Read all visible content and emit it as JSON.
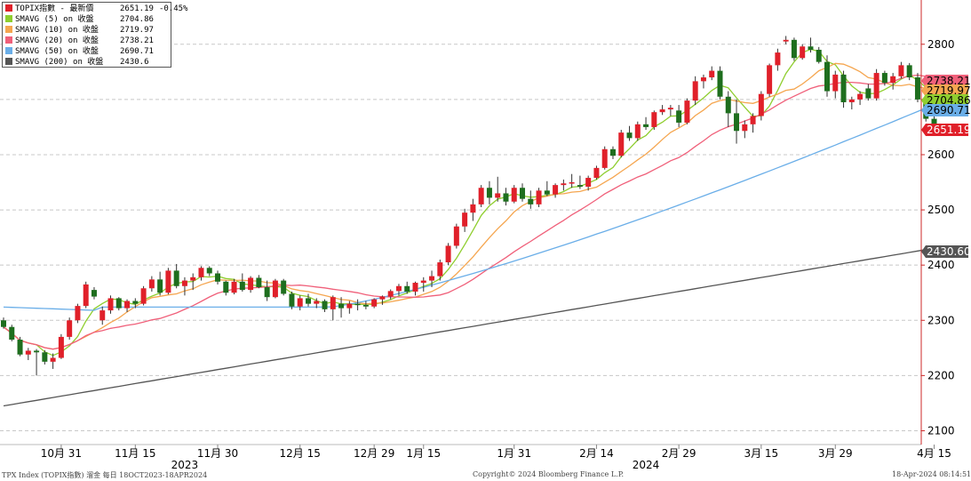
{
  "chart_data": {
    "type": "candlestick",
    "series": [
      {
        "name": "TOPIX指數 - 最新價",
        "last": 2651.19,
        "change": "-0.45%",
        "color": "#e0202a"
      },
      {
        "name": "SMAVG (5)  on 收盤",
        "last": 2704.86,
        "color": "#8fce2f"
      },
      {
        "name": "SMAVG (10)  on 收盤",
        "last": 2719.97,
        "color": "#f5a650"
      },
      {
        "name": "SMAVG (20)  on 收盤",
        "last": 2738.21,
        "color": "#f0607a"
      },
      {
        "name": "SMAVG (50)  on 收盤",
        "last": 2690.71,
        "color": "#6aaee8"
      },
      {
        "name": "SMAVG (200)  on 收盤",
        "last": 2430.6,
        "color": "#555555"
      }
    ],
    "y_axis": {
      "ticks": [
        2100,
        2200,
        2300,
        2400,
        2500,
        2600,
        2700,
        2800
      ],
      "range": [
        2075,
        2905
      ],
      "side": "right"
    },
    "x_axis": {
      "ticks": [
        "10月 31",
        "11月 15",
        "11月 30",
        "12月 15",
        "12月 29",
        "1月 15",
        "1月 31",
        "2月 14",
        "2月 29",
        "3月 15",
        "3月 29",
        "4月 15"
      ],
      "years": [
        "2023",
        "2024"
      ]
    },
    "tags": [
      "2738.21",
      "2719.97",
      "2704.86",
      "2690.71",
      "2651.19",
      "2430.60"
    ],
    "grid": "horizontal dashed",
    "up_color": "#e0202a",
    "down_color": "#1e6e1e",
    "candles": [
      [
        2300,
        2305,
        2285,
        2288
      ],
      [
        2288,
        2292,
        2262,
        2265
      ],
      [
        2265,
        2270,
        2235,
        2238
      ],
      [
        2238,
        2250,
        2228,
        2245
      ],
      [
        2245,
        2248,
        2200,
        2242
      ],
      [
        2242,
        2246,
        2220,
        2225
      ],
      [
        2225,
        2240,
        2212,
        2232
      ],
      [
        2232,
        2275,
        2230,
        2270
      ],
      [
        2270,
        2305,
        2265,
        2300
      ],
      [
        2300,
        2330,
        2295,
        2326
      ],
      [
        2326,
        2370,
        2322,
        2365
      ],
      [
        2355,
        2360,
        2338,
        2343
      ],
      [
        2300,
        2325,
        2292,
        2318
      ],
      [
        2318,
        2345,
        2312,
        2340
      ],
      [
        2340,
        2342,
        2318,
        2322
      ],
      [
        2322,
        2338,
        2315,
        2335
      ],
      [
        2335,
        2340,
        2322,
        2330
      ],
      [
        2330,
        2362,
        2327,
        2358
      ],
      [
        2358,
        2380,
        2352,
        2374
      ],
      [
        2374,
        2388,
        2345,
        2350
      ],
      [
        2350,
        2395,
        2347,
        2390
      ],
      [
        2390,
        2402,
        2358,
        2362
      ],
      [
        2362,
        2378,
        2345,
        2372
      ],
      [
        2372,
        2385,
        2355,
        2378
      ],
      [
        2378,
        2398,
        2372,
        2395
      ],
      [
        2395,
        2398,
        2380,
        2385
      ],
      [
        2385,
        2390,
        2365,
        2370
      ],
      [
        2370,
        2372,
        2345,
        2350
      ],
      [
        2350,
        2375,
        2347,
        2370
      ],
      [
        2370,
        2385,
        2352,
        2355
      ],
      [
        2355,
        2380,
        2350,
        2377
      ],
      [
        2377,
        2382,
        2358,
        2360
      ],
      [
        2360,
        2372,
        2335,
        2342
      ],
      [
        2342,
        2375,
        2340,
        2372
      ],
      [
        2372,
        2375,
        2345,
        2348
      ],
      [
        2348,
        2352,
        2320,
        2325
      ],
      [
        2325,
        2345,
        2318,
        2340
      ],
      [
        2340,
        2348,
        2325,
        2330
      ],
      [
        2330,
        2340,
        2322,
        2335
      ],
      [
        2335,
        2338,
        2315,
        2320
      ],
      [
        2320,
        2345,
        2300,
        2342
      ],
      [
        2330,
        2342,
        2305,
        2322
      ],
      [
        2322,
        2335,
        2312,
        2330
      ],
      [
        2330,
        2338,
        2318,
        2328
      ],
      [
        2328,
        2335,
        2320,
        2325
      ],
      [
        2325,
        2340,
        2322,
        2338
      ],
      [
        2338,
        2345,
        2328,
        2343
      ],
      [
        2343,
        2356,
        2338,
        2353
      ],
      [
        2353,
        2366,
        2345,
        2362
      ],
      [
        2362,
        2370,
        2348,
        2352
      ],
      [
        2352,
        2370,
        2345,
        2368
      ],
      [
        2368,
        2378,
        2352,
        2372
      ],
      [
        2372,
        2390,
        2360,
        2380
      ],
      [
        2380,
        2410,
        2372,
        2405
      ],
      [
        2405,
        2440,
        2400,
        2435
      ],
      [
        2435,
        2475,
        2430,
        2470
      ],
      [
        2470,
        2502,
        2460,
        2495
      ],
      [
        2495,
        2520,
        2480,
        2510
      ],
      [
        2510,
        2545,
        2505,
        2540
      ],
      [
        2540,
        2552,
        2510,
        2522
      ],
      [
        2522,
        2560,
        2515,
        2530
      ],
      [
        2530,
        2540,
        2508,
        2515
      ],
      [
        2515,
        2545,
        2512,
        2540
      ],
      [
        2540,
        2548,
        2515,
        2520
      ],
      [
        2520,
        2535,
        2502,
        2510
      ],
      [
        2510,
        2540,
        2505,
        2535
      ],
      [
        2535,
        2552,
        2525,
        2528
      ],
      [
        2528,
        2548,
        2522,
        2545
      ],
      [
        2545,
        2555,
        2535,
        2548
      ],
      [
        2548,
        2565,
        2540,
        2550
      ],
      [
        2545,
        2562,
        2538,
        2542
      ],
      [
        2542,
        2562,
        2535,
        2558
      ],
      [
        2558,
        2580,
        2555,
        2576
      ],
      [
        2576,
        2615,
        2573,
        2610
      ],
      [
        2610,
        2615,
        2592,
        2598
      ],
      [
        2598,
        2645,
        2595,
        2640
      ],
      [
        2640,
        2652,
        2625,
        2630
      ],
      [
        2630,
        2660,
        2625,
        2655
      ],
      [
        2655,
        2668,
        2645,
        2650
      ],
      [
        2650,
        2680,
        2645,
        2677
      ],
      [
        2677,
        2690,
        2672,
        2682
      ],
      [
        2682,
        2690,
        2670,
        2685
      ],
      [
        2680,
        2690,
        2650,
        2658
      ],
      [
        2658,
        2702,
        2655,
        2698
      ],
      [
        2698,
        2742,
        2690,
        2733
      ],
      [
        2733,
        2745,
        2720,
        2740
      ],
      [
        2740,
        2760,
        2735,
        2752
      ],
      [
        2752,
        2760,
        2700,
        2705
      ],
      [
        2705,
        2715,
        2650,
        2675
      ],
      [
        2675,
        2700,
        2620,
        2643
      ],
      [
        2643,
        2662,
        2630,
        2655
      ],
      [
        2655,
        2675,
        2640,
        2670
      ],
      [
        2670,
        2715,
        2662,
        2710
      ],
      [
        2710,
        2765,
        2705,
        2762
      ],
      [
        2762,
        2792,
        2752,
        2785
      ],
      [
        2805,
        2815,
        2800,
        2808
      ],
      [
        2808,
        2812,
        2770,
        2775
      ],
      [
        2775,
        2800,
        2772,
        2796
      ],
      [
        2796,
        2812,
        2785,
        2790
      ],
      [
        2790,
        2795,
        2765,
        2768
      ],
      [
        2768,
        2780,
        2705,
        2715
      ],
      [
        2715,
        2752,
        2702,
        2745
      ],
      [
        2745,
        2752,
        2685,
        2695
      ],
      [
        2695,
        2705,
        2682,
        2700
      ],
      [
        2700,
        2715,
        2690,
        2710
      ],
      [
        2720,
        2728,
        2698,
        2702
      ],
      [
        2702,
        2755,
        2698,
        2748
      ],
      [
        2748,
        2752,
        2725,
        2730
      ],
      [
        2730,
        2748,
        2718,
        2742
      ],
      [
        2742,
        2768,
        2738,
        2762
      ],
      [
        2762,
        2766,
        2735,
        2740
      ],
      [
        2740,
        2748,
        2695,
        2700
      ],
      [
        2700,
        2706,
        2660,
        2665
      ],
      [
        2665,
        2670,
        2651,
        2651
      ]
    ]
  },
  "footer": {
    "left": "TPX Index (TOPIX指數) 溜金  每日 18OCT2023-18APR2024",
    "center": "Copyright© 2024 Bloomberg Finance L.P.",
    "right": "18-Apr-2024 08:14:51"
  }
}
